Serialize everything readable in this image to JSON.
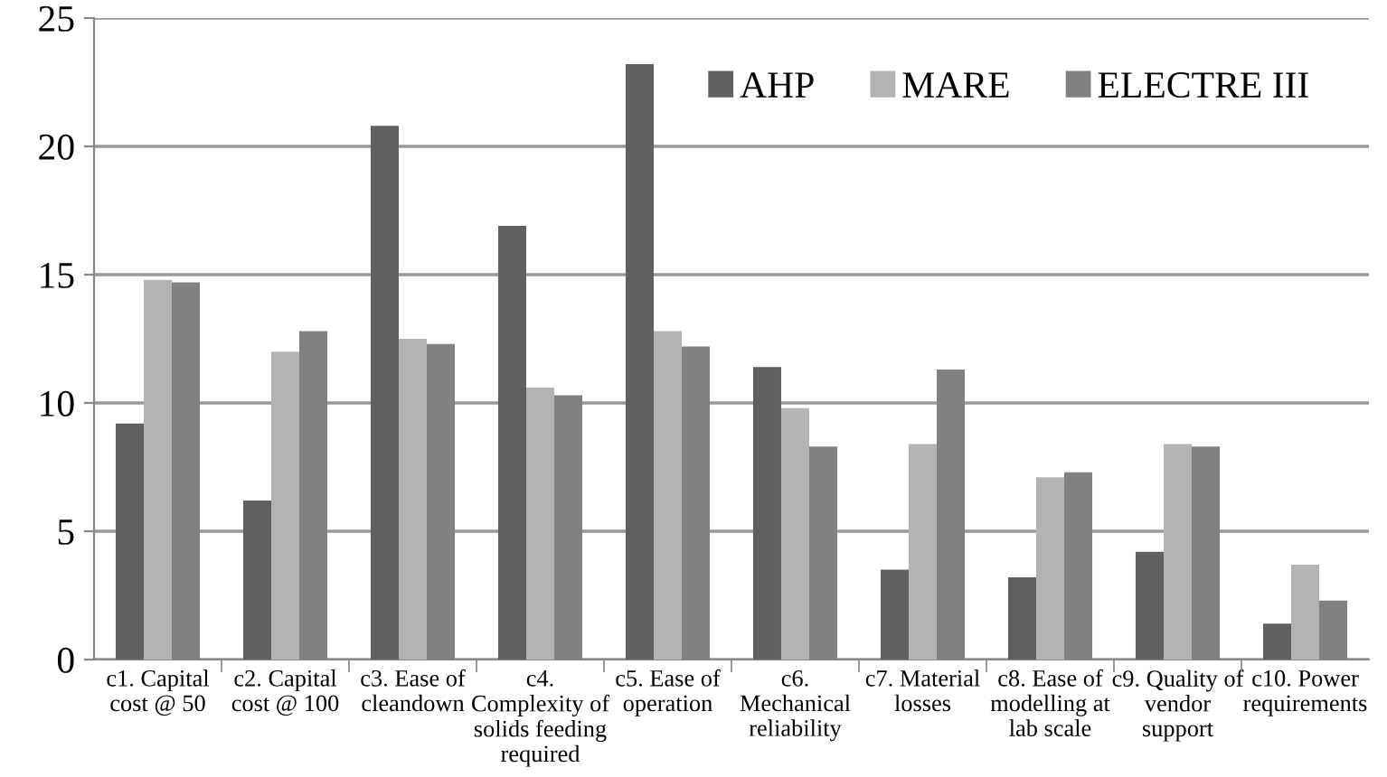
{
  "chart_data": {
    "type": "bar",
    "categories": [
      "c1. Capital\ncost @ 50",
      "c2. Capital\ncost @ 100",
      "c3. Ease of\ncleandown",
      "c4.\nComplexity of\nsolids feeding\nrequired",
      "c5. Ease of\noperation",
      "c6.\nMechanical\nreliability",
      "c7. Material\nlosses",
      "c8. Ease of\nmodelling at\nlab scale",
      "c9. Quality of\nvendor\nsupport",
      "c10. Power\nrequirements"
    ],
    "series": [
      {
        "name": "AHP",
        "color": "#606060",
        "values": [
          9.2,
          6.2,
          20.8,
          16.9,
          23.2,
          11.4,
          3.5,
          3.2,
          4.2,
          1.4
        ]
      },
      {
        "name": "MARE",
        "color": "#b3b3b3",
        "values": [
          14.8,
          12.0,
          12.5,
          10.6,
          12.8,
          9.8,
          8.4,
          7.1,
          8.4,
          3.7
        ]
      },
      {
        "name": "ELECTRE III",
        "color": "#818181",
        "values": [
          14.7,
          12.8,
          12.3,
          10.3,
          12.2,
          8.3,
          11.3,
          7.3,
          8.3,
          2.3
        ]
      }
    ],
    "ylim": [
      0,
      25
    ],
    "yticks": [
      0,
      5,
      10,
      15,
      20,
      25
    ],
    "grid": "y",
    "legend": "top right"
  }
}
